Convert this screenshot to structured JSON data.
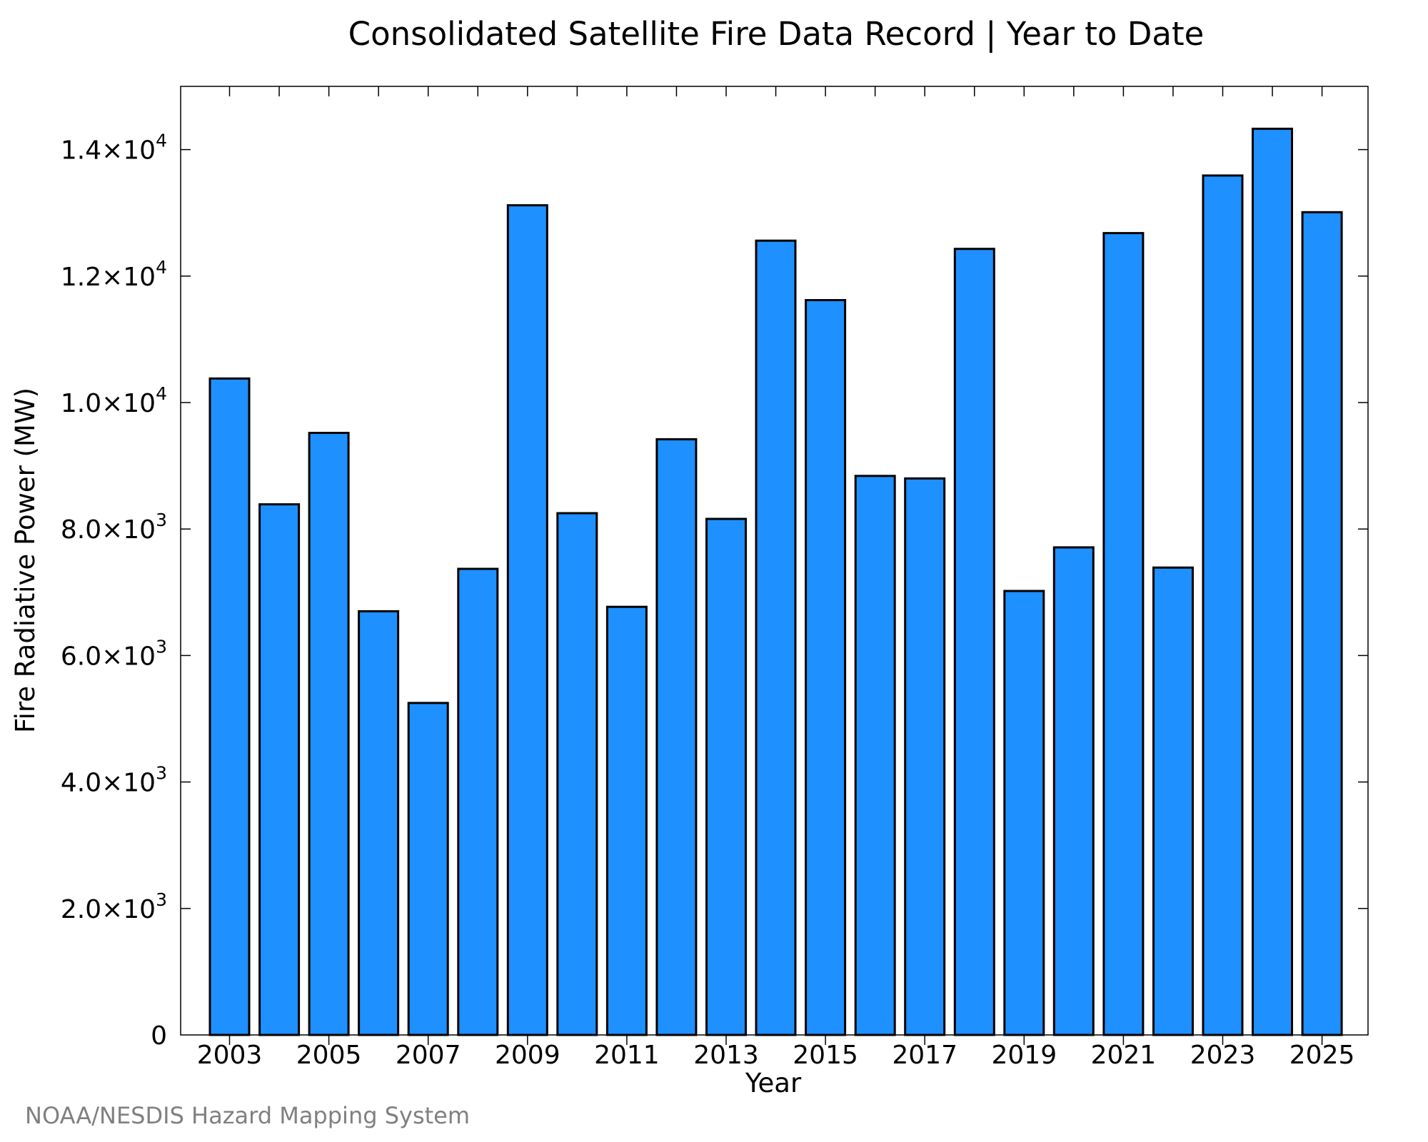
{
  "chart_data": {
    "type": "bar",
    "title": "Consolidated Satellite Fire Data Record | Year to Date",
    "xlabel": "Year",
    "ylabel": "Fire Radiative Power (MW)",
    "categories": [
      "2003",
      "2004",
      "2005",
      "2006",
      "2007",
      "2008",
      "2009",
      "2010",
      "2011",
      "2012",
      "2013",
      "2014",
      "2015",
      "2016",
      "2017",
      "2018",
      "2019",
      "2020",
      "2021",
      "2022",
      "2023",
      "2024",
      "2025"
    ],
    "values": [
      10380,
      8390,
      9520,
      6700,
      5250,
      7370,
      13120,
      8250,
      6770,
      9420,
      8160,
      12560,
      11620,
      8840,
      8800,
      12430,
      7020,
      7710,
      12680,
      7390,
      13590,
      14330,
      13010
    ],
    "ylim": [
      0,
      15000
    ],
    "yticks": [
      {
        "value": 0,
        "label": "0"
      },
      {
        "value": 2000,
        "label": "2.0×10",
        "exp": "3"
      },
      {
        "value": 4000,
        "label": "4.0×10",
        "exp": "3"
      },
      {
        "value": 6000,
        "label": "6.0×10",
        "exp": "3"
      },
      {
        "value": 8000,
        "label": "8.0×10",
        "exp": "3"
      },
      {
        "value": 10000,
        "label": "1.0×10",
        "exp": "4"
      },
      {
        "value": 12000,
        "label": "1.2×10",
        "exp": "4"
      },
      {
        "value": 14000,
        "label": "1.4×10",
        "exp": "4"
      }
    ],
    "xtick_labels": [
      "2003",
      "2005",
      "2007",
      "2009",
      "2011",
      "2013",
      "2015",
      "2017",
      "2019",
      "2021",
      "2023",
      "2025"
    ],
    "bar_color": "#1e90ff",
    "grid": false,
    "legend": "none"
  },
  "credit": "NOAA/NESDIS Hazard Mapping System"
}
